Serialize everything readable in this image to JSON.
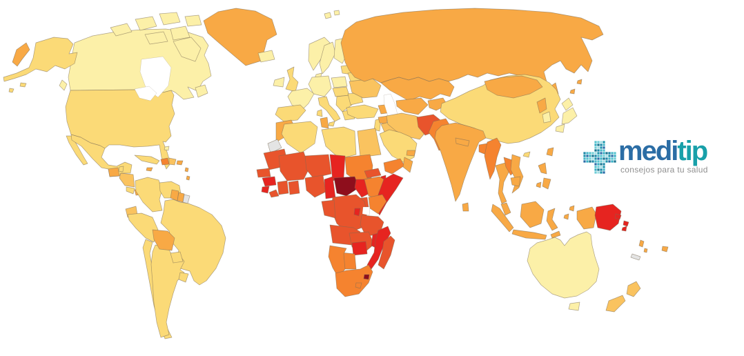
{
  "page": {
    "background": "#FFFFFF"
  },
  "map": {
    "sea_color": "#FFFFFF",
    "border_color": "#7A6A55",
    "palette": {
      "no_data": "#E4E4E4",
      "level_1": "#FCF0A8",
      "level_2": "#FBDA77",
      "level_3": "#FAC35F",
      "level_4": "#F8A945",
      "level_5": "#F5832F",
      "level_6": "#E8542C",
      "level_7": "#E62420",
      "level_8": "#8E0E1C"
    },
    "regions": {
      "alaska": {
        "name": "United States (Alaska)",
        "level": "level_2"
      },
      "canada": {
        "name": "Canada",
        "level": "level_1"
      },
      "canada-arctic": {
        "name": "Canadian Arctic Islands",
        "level": "level_1"
      },
      "greenland": {
        "name": "Greenland",
        "level": "level_4"
      },
      "iceland": {
        "name": "Iceland",
        "level": "level_1"
      },
      "svalbard": {
        "name": "Svalbard",
        "level": "level_1"
      },
      "usa": {
        "name": "United States",
        "level": "level_2"
      },
      "mexico": {
        "name": "Mexico",
        "level": "level_2"
      },
      "guatemala": {
        "name": "Guatemala",
        "level": "level_4"
      },
      "belize": {
        "name": "Belize",
        "level": "level_2"
      },
      "honduras-nicaragua": {
        "name": "Honduras / Nicaragua",
        "level": "level_3"
      },
      "costa-rica": {
        "name": "Costa Rica",
        "level": "level_2"
      },
      "panama": {
        "name": "Panama",
        "level": "level_4"
      },
      "cuba": {
        "name": "Cuba",
        "level": "level_2"
      },
      "haiti": {
        "name": "Haiti",
        "level": "level_5"
      },
      "dominican-republic": {
        "name": "Dominican Republic",
        "level": "level_3"
      },
      "jamaica": {
        "name": "Jamaica",
        "level": "level_4"
      },
      "puerto-rico": {
        "name": "Puerto Rico",
        "level": "level_4"
      },
      "lesser-antilles": {
        "name": "Lesser Antilles",
        "level": "level_4"
      },
      "bahamas": {
        "name": "Bahamas",
        "level": "level_1"
      },
      "colombia": {
        "name": "Colombia",
        "level": "level_2"
      },
      "venezuela": {
        "name": "Venezuela",
        "level": "level_2"
      },
      "guyana": {
        "name": "Guyana",
        "level": "level_4"
      },
      "suriname": {
        "name": "Suriname",
        "level": "level_4"
      },
      "french-guiana": {
        "name": "French Guiana",
        "level": "no_data"
      },
      "ecuador": {
        "name": "Ecuador",
        "level": "level_3"
      },
      "peru": {
        "name": "Peru",
        "level": "level_2"
      },
      "brazil": {
        "name": "Brazil",
        "level": "level_2"
      },
      "bolivia": {
        "name": "Bolivia",
        "level": "level_4"
      },
      "paraguay": {
        "name": "Paraguay",
        "level": "level_2"
      },
      "chile": {
        "name": "Chile",
        "level": "level_2"
      },
      "argentina": {
        "name": "Argentina",
        "level": "level_2"
      },
      "uruguay": {
        "name": "Uruguay",
        "level": "level_2"
      },
      "ireland": {
        "name": "Ireland",
        "level": "level_1"
      },
      "uk": {
        "name": "United Kingdom",
        "level": "level_2"
      },
      "norway": {
        "name": "Norway",
        "level": "level_1"
      },
      "sweden": {
        "name": "Sweden",
        "level": "level_1"
      },
      "finland": {
        "name": "Finland",
        "level": "level_1"
      },
      "denmark": {
        "name": "Denmark",
        "level": "level_1"
      },
      "baltics": {
        "name": "Baltic States",
        "level": "level_2"
      },
      "poland": {
        "name": "Poland",
        "level": "level_1"
      },
      "central-europe": {
        "name": "Central Europe",
        "level": "level_1"
      },
      "france": {
        "name": "France",
        "level": "level_1"
      },
      "spain": {
        "name": "Spain",
        "level": "level_2"
      },
      "italy": {
        "name": "Italy",
        "level": "level_2"
      },
      "czech-hungary": {
        "name": "Czechia / Hungary",
        "level": "level_2"
      },
      "balkans": {
        "name": "Balkans",
        "level": "level_2"
      },
      "greece": {
        "name": "Greece",
        "level": "level_2"
      },
      "romania-bulgaria": {
        "name": "Romania / Bulgaria",
        "level": "level_2"
      },
      "belarus": {
        "name": "Belarus",
        "level": "level_2"
      },
      "ukraine": {
        "name": "Ukraine",
        "level": "level_3"
      },
      "russia": {
        "name": "Russia",
        "level": "level_4"
      },
      "kazakhstan": {
        "name": "Kazakhstan",
        "level": "level_4"
      },
      "caucasus": {
        "name": "Caucasus",
        "level": "level_4"
      },
      "uzbek-turkmen": {
        "name": "Uzbekistan / Turkmenistan",
        "level": "level_4"
      },
      "kyrgyz-tajik": {
        "name": "Kyrgyzstan / Tajikistan",
        "level": "level_4"
      },
      "turkey": {
        "name": "Turkey",
        "level": "level_2"
      },
      "levant": {
        "name": "Levant",
        "level": "level_2"
      },
      "syria": {
        "name": "Syria",
        "level": "level_4"
      },
      "iraq": {
        "name": "Iraq",
        "level": "level_3"
      },
      "iran": {
        "name": "Iran",
        "level": "level_3"
      },
      "afghanistan": {
        "name": "Afghanistan",
        "level": "level_6"
      },
      "pakistan": {
        "name": "Pakistan",
        "level": "level_5"
      },
      "saudi-arabia": {
        "name": "Saudi Arabia",
        "level": "level_2"
      },
      "yemen": {
        "name": "Yemen",
        "level": "level_5"
      },
      "oman": {
        "name": "Oman",
        "level": "level_4"
      },
      "uae": {
        "name": "United Arab Emirates",
        "level": "level_4"
      },
      "morocco": {
        "name": "Morocco",
        "level": "level_4"
      },
      "western-sahara": {
        "name": "Western Sahara",
        "level": "no_data"
      },
      "algeria": {
        "name": "Algeria",
        "level": "level_2"
      },
      "tunisia": {
        "name": "Tunisia",
        "level": "level_4"
      },
      "libya": {
        "name": "Libya",
        "level": "level_2"
      },
      "egypt": {
        "name": "Egypt",
        "level": "level_3"
      },
      "mauritania": {
        "name": "Mauritania",
        "level": "level_6"
      },
      "mali": {
        "name": "Mali",
        "level": "level_6"
      },
      "niger": {
        "name": "Niger",
        "level": "level_6"
      },
      "chad": {
        "name": "Chad",
        "level": "level_7"
      },
      "sudan": {
        "name": "Sudan",
        "level": "level_5"
      },
      "senegal": {
        "name": "Senegal",
        "level": "level_6"
      },
      "guinea": {
        "name": "Guinea",
        "level": "level_7"
      },
      "sierra-leone": {
        "name": "Sierra Leone",
        "level": "level_7"
      },
      "liberia": {
        "name": "Liberia",
        "level": "level_6"
      },
      "cote-divoire": {
        "name": "Cote d'Ivoire",
        "level": "level_6"
      },
      "ghana": {
        "name": "Ghana",
        "level": "level_6"
      },
      "nigeria": {
        "name": "Nigeria",
        "level": "level_6"
      },
      "cameroon": {
        "name": "Cameroon",
        "level": "level_7"
      },
      "central-african-republic": {
        "name": "Central African Republic",
        "level": "level_8"
      },
      "south-sudan": {
        "name": "South Sudan",
        "level": "level_7"
      },
      "eritrea": {
        "name": "Eritrea",
        "level": "level_6"
      },
      "djibouti": {
        "name": "Djibouti",
        "level": "level_7"
      },
      "ethiopia": {
        "name": "Ethiopia",
        "level": "level_5"
      },
      "somalia": {
        "name": "Somalia",
        "level": "level_7"
      },
      "uganda": {
        "name": "Uganda",
        "level": "level_6"
      },
      "kenya": {
        "name": "Kenya",
        "level": "level_5"
      },
      "drc": {
        "name": "DR Congo",
        "level": "level_6"
      },
      "gabon-congo": {
        "name": "Gabon / Congo",
        "level": "level_6"
      },
      "rwanda-burundi": {
        "name": "Rwanda / Burundi",
        "level": "level_7"
      },
      "tanzania": {
        "name": "Tanzania",
        "level": "level_6"
      },
      "angola": {
        "name": "Angola",
        "level": "level_6"
      },
      "zambia": {
        "name": "Zambia",
        "level": "level_6"
      },
      "malawi": {
        "name": "Malawi",
        "level": "level_7"
      },
      "mozambique": {
        "name": "Mozambique",
        "level": "level_7"
      },
      "zimbabwe": {
        "name": "Zimbabwe",
        "level": "level_7"
      },
      "botswana": {
        "name": "Botswana",
        "level": "level_5"
      },
      "namibia": {
        "name": "Namibia",
        "level": "level_5"
      },
      "south-africa": {
        "name": "South Africa",
        "level": "level_5"
      },
      "lesotho": {
        "name": "Lesotho",
        "level": "level_5"
      },
      "eswatini": {
        "name": "Eswatini",
        "level": "level_8"
      },
      "madagascar": {
        "name": "Madagascar",
        "level": "level_6"
      },
      "india": {
        "name": "India",
        "level": "level_4"
      },
      "nepal": {
        "name": "Nepal",
        "level": "level_4"
      },
      "bangladesh": {
        "name": "Bangladesh",
        "level": "level_5"
      },
      "sri-lanka": {
        "name": "Sri Lanka",
        "level": "level_4"
      },
      "myanmar": {
        "name": "Myanmar",
        "level": "level_5"
      },
      "china": {
        "name": "China",
        "level": "level_2"
      },
      "mongolia": {
        "name": "Mongolia",
        "level": "level_4"
      },
      "north-korea": {
        "name": "North Korea",
        "level": "level_4"
      },
      "south-korea": {
        "name": "South Korea",
        "level": "level_1"
      },
      "japan": {
        "name": "Japan",
        "level": "level_1"
      },
      "taiwan": {
        "name": "Taiwan",
        "level": "level_4"
      },
      "thailand": {
        "name": "Thailand",
        "level": "level_4"
      },
      "laos": {
        "name": "Laos",
        "level": "level_5"
      },
      "vietnam": {
        "name": "Vietnam",
        "level": "level_4"
      },
      "cambodia": {
        "name": "Cambodia",
        "level": "level_4"
      },
      "malaysia": {
        "name": "Malaysia",
        "level": "level_4"
      },
      "indonesia": {
        "name": "Indonesia",
        "level": "level_4"
      },
      "timor-leste": {
        "name": "Timor-Leste",
        "level": "level_4"
      },
      "philippines": {
        "name": "Philippines",
        "level": "level_4"
      },
      "papua-new-guinea": {
        "name": "Papua New Guinea",
        "level": "level_7"
      },
      "solomon-islands": {
        "name": "Solomon Islands",
        "level": "level_7"
      },
      "vanuatu": {
        "name": "Vanuatu",
        "level": "level_4"
      },
      "fiji": {
        "name": "Fiji",
        "level": "level_4"
      },
      "new-caledonia": {
        "name": "New Caledonia",
        "level": "no_data"
      },
      "australia": {
        "name": "Australia",
        "level": "level_1"
      },
      "new-zealand": {
        "name": "New Zealand",
        "level": "level_3"
      }
    }
  },
  "logo": {
    "brand_primary": "medi",
    "brand_secondary": "tip",
    "tagline": "consejos para tu salud",
    "colors": {
      "primary": "#2B6DA5",
      "secondary": "#18A0A9",
      "tagline": "#8F8F8F"
    },
    "cross_colors": [
      "#35AEC3",
      "#1D87A8",
      "#55C3CF",
      "#9FDCE3",
      "#2B6CA8",
      "#17748F",
      "#47B7C8",
      "#6FCDD6",
      "#1F95AC"
    ]
  }
}
